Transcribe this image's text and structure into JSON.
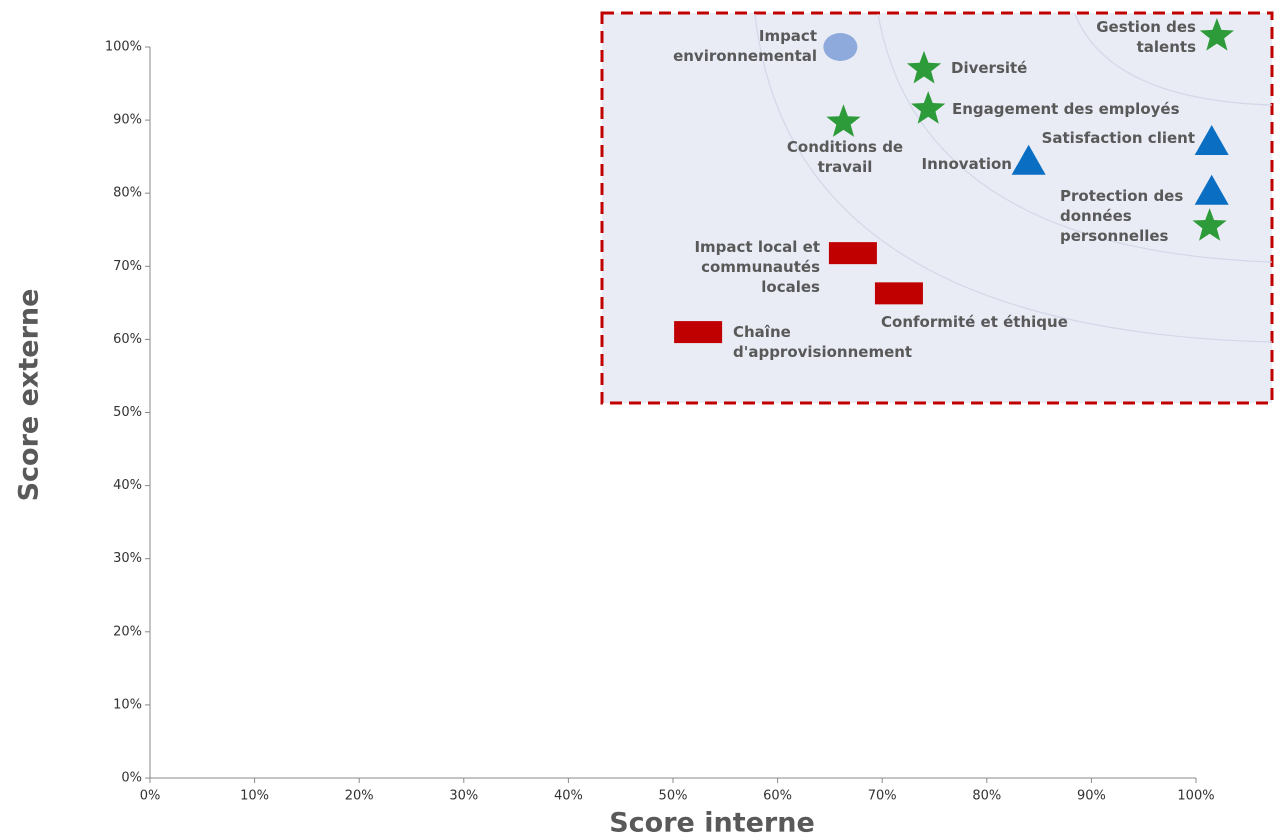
{
  "chart_data": {
    "type": "scatter",
    "xlabel": "Score interne",
    "ylabel": "Score externe",
    "xlim": [
      0,
      100
    ],
    "ylim": [
      0,
      100
    ],
    "xticks": [
      {
        "value": 0,
        "label": "0%"
      },
      {
        "value": 10,
        "label": "10%"
      },
      {
        "value": 20,
        "label": "20%"
      },
      {
        "value": 30,
        "label": "30%"
      },
      {
        "value": 40,
        "label": "40%"
      },
      {
        "value": 50,
        "label": "50%"
      },
      {
        "value": 60,
        "label": "60%"
      },
      {
        "value": 70,
        "label": "70%"
      },
      {
        "value": 80,
        "label": "80%"
      },
      {
        "value": 90,
        "label": "90%"
      },
      {
        "value": 100,
        "label": "100%"
      }
    ],
    "yticks": [
      {
        "value": 0,
        "label": "0%"
      },
      {
        "value": 10,
        "label": "10%"
      },
      {
        "value": 20,
        "label": "20%"
      },
      {
        "value": 30,
        "label": "30%"
      },
      {
        "value": 40,
        "label": "40%"
      },
      {
        "value": 50,
        "label": "50%"
      },
      {
        "value": 60,
        "label": "60%"
      },
      {
        "value": 70,
        "label": "70%"
      },
      {
        "value": 80,
        "label": "80%"
      },
      {
        "value": 90,
        "label": "90%"
      },
      {
        "value": 100,
        "label": "100%"
      }
    ],
    "series": [
      {
        "marker": "circle",
        "color": "#8ea9db",
        "labels": [
          "Impact environnemental"
        ],
        "x": [
          66
        ],
        "y": [
          100
        ]
      },
      {
        "marker": "star",
        "color": "#2e9b3a",
        "labels": [
          "Diversité",
          "Engagement des employés",
          "Conditions de travail",
          "Gestion des talents",
          null
        ],
        "x": [
          74,
          74.4,
          66.3,
          102,
          101.3
        ],
        "y": [
          97,
          91.5,
          89.7,
          101.5,
          75.5
        ]
      },
      {
        "marker": "triangle",
        "color": "#0a6fc2",
        "labels": [
          "Satisfaction client",
          "Innovation",
          "Protection des données personnelles"
        ],
        "x": [
          101.5,
          84,
          101.5
        ],
        "y": [
          87,
          84.3,
          80.2
        ]
      },
      {
        "marker": "rect",
        "color": "#c00000",
        "labels": [
          "Impact local et communautés locales",
          "Conformité et éthique",
          "Chaîne d'approvisionnement"
        ],
        "x": [
          67.2,
          71.6,
          52.4
        ],
        "y": [
          71.8,
          66.3,
          61
        ]
      }
    ]
  }
}
